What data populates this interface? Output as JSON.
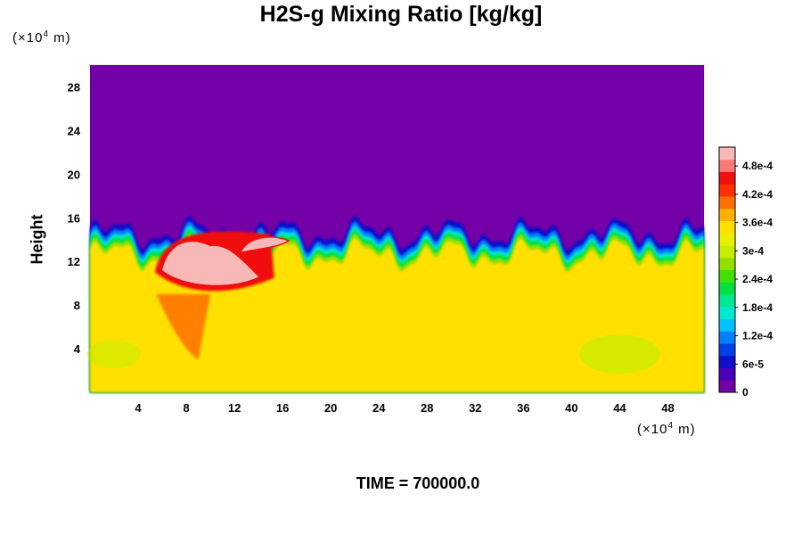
{
  "chart_data": {
    "type": "heatmap",
    "title": "H2S-g Mixing Ratio [kg/kg]",
    "ylabel": "Height",
    "xlabel": "",
    "x_unit": {
      "base": "(×10",
      "exp": "4",
      "rest": " m)"
    },
    "y_unit": {
      "base": "(×10",
      "exp": "4",
      "rest": " m)"
    },
    "xlim": [
      0,
      51
    ],
    "ylim": [
      0,
      30
    ],
    "x_ticks": [
      4,
      8,
      12,
      16,
      20,
      24,
      28,
      32,
      36,
      40,
      44,
      48
    ],
    "y_ticks": [
      4,
      8,
      12,
      16,
      20,
      24,
      28
    ],
    "colorbar": {
      "range": [
        0,
        0.00052
      ],
      "labels": [
        "0",
        "6e-5",
        "1.2e-4",
        "1.8e-4",
        "2.4e-4",
        "3e-4",
        "3.6e-4",
        "4.2e-4",
        "4.8e-4"
      ],
      "label_values": [
        0,
        6e-05,
        0.00012,
        0.00018,
        0.00024,
        0.0003,
        0.00036,
        0.00042,
        0.00048
      ],
      "colors": [
        "#7400a8",
        "#4a00b8",
        "#1010c8",
        "#0040e8",
        "#0080ff",
        "#00c0ff",
        "#00e8d0",
        "#00e890",
        "#00e040",
        "#40e000",
        "#90e000",
        "#c8ec00",
        "#e8f000",
        "#ffe000",
        "#ffb000",
        "#ff7000",
        "#ff3000",
        "#f01010",
        "#f87878",
        "#f8b8b8"
      ]
    },
    "fields": {
      "upper_value": 0,
      "lower_value": 0.00035,
      "interface_height": 13,
      "peak_value": 0.00052,
      "peak_region_x": [
        6,
        14
      ],
      "peak_region_y": [
        9.5,
        14.5
      ]
    },
    "footer": "TIME = 700000.0"
  }
}
